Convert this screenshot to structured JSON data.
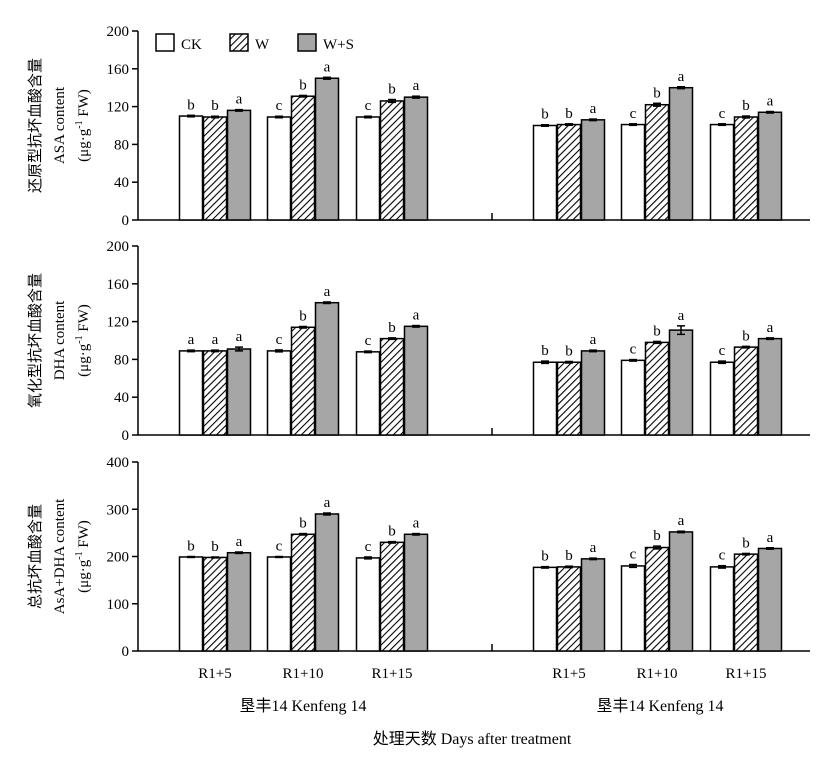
{
  "legend": {
    "entries": [
      {
        "label": "CK",
        "pattern": "ck"
      },
      {
        "label": "W",
        "pattern": "w"
      },
      {
        "label": "W+S",
        "pattern": "ws"
      }
    ]
  },
  "colors": {
    "ck_fill": "#ffffff",
    "ws_fill": "#a6a6a6",
    "stroke": "#000000"
  },
  "x_axis": {
    "categories": [
      "R1+5",
      "R1+10",
      "R1+15",
      "R1+5",
      "R1+10",
      "R1+15"
    ],
    "group_labels": [
      "垦丰14 Kenfeng 14",
      "垦丰14 Kenfeng 14"
    ],
    "title": "处理天数 Days after treatment"
  },
  "chart_data": [
    {
      "type": "bar",
      "ylabel_cn": "还原型抗坏血酸含量",
      "ylabel_en": "ASA content",
      "ylabel_unit_pre": "(μg·g",
      "ylabel_unit_sup": "-1",
      "ylabel_unit_post": " FW)",
      "ylim": [
        0,
        200
      ],
      "yticks": [
        0,
        40,
        80,
        120,
        160,
        200
      ],
      "series": [
        {
          "name": "CK",
          "values": [
            110,
            109,
            109,
            100,
            101,
            101
          ],
          "errors": [
            0.8,
            0.8,
            0.8,
            0.8,
            0.8,
            0.8
          ]
        },
        {
          "name": "W",
          "values": [
            109,
            131,
            126,
            101,
            122,
            109
          ],
          "errors": [
            0.8,
            0.8,
            1.5,
            0.8,
            1.5,
            1.0
          ]
        },
        {
          "name": "W+S",
          "values": [
            116,
            150,
            130,
            106,
            140,
            114
          ],
          "errors": [
            0.8,
            1.0,
            1.0,
            0.8,
            1.0,
            0.8
          ]
        }
      ],
      "labels": [
        [
          "b",
          "b",
          "a"
        ],
        [
          "c",
          "b",
          "a"
        ],
        [
          "c",
          "b",
          "a"
        ],
        [
          "b",
          "b",
          "a"
        ],
        [
          "c",
          "b",
          "a"
        ],
        [
          "c",
          "b",
          "a"
        ]
      ]
    },
    {
      "type": "bar",
      "ylabel_cn": "氧化型抗坏血酸含量",
      "ylabel_en": "DHA content",
      "ylabel_unit_pre": "(μg·g",
      "ylabel_unit_sup": "-1",
      "ylabel_unit_post": " FW)",
      "ylim": [
        0,
        200
      ],
      "yticks": [
        0,
        40,
        80,
        120,
        160,
        200
      ],
      "series": [
        {
          "name": "CK",
          "values": [
            89,
            89,
            88,
            77,
            79,
            77
          ],
          "errors": [
            0.8,
            1.0,
            0.8,
            1.2,
            0.8,
            1.2
          ]
        },
        {
          "name": "W",
          "values": [
            89,
            114,
            102,
            77,
            98,
            93
          ],
          "errors": [
            0.8,
            0.8,
            0.8,
            0.8,
            1.0,
            0.8
          ]
        },
        {
          "name": "W+S",
          "values": [
            91,
            140,
            115,
            89,
            111,
            102
          ],
          "errors": [
            2.0,
            0.8,
            0.8,
            0.8,
            4.5,
            0.8
          ]
        }
      ],
      "labels": [
        [
          "a",
          "a",
          "a"
        ],
        [
          "c",
          "b",
          "a"
        ],
        [
          "c",
          "b",
          "a"
        ],
        [
          "b",
          "b",
          "a"
        ],
        [
          "c",
          "b",
          "a"
        ],
        [
          "c",
          "b",
          "a"
        ]
      ]
    },
    {
      "type": "bar",
      "ylabel_cn": "总抗坏血酸含量",
      "ylabel_en": "AsA+DHA content",
      "ylabel_unit_pre": "(μg·g",
      "ylabel_unit_sup": "-1",
      "ylabel_unit_post": " FW)",
      "ylim": [
        0,
        400
      ],
      "yticks": [
        0,
        100,
        200,
        300,
        400
      ],
      "series": [
        {
          "name": "CK",
          "values": [
            199,
            199,
            197,
            177,
            180,
            178
          ],
          "errors": [
            1.0,
            1.0,
            2.0,
            1.5,
            3.0,
            2.5
          ]
        },
        {
          "name": "W",
          "values": [
            198,
            247,
            230,
            178,
            219,
            205
          ],
          "errors": [
            1.0,
            1.5,
            1.5,
            1.5,
            3.0,
            1.5
          ]
        },
        {
          "name": "W+S",
          "values": [
            208,
            290,
            247,
            195,
            252,
            217
          ],
          "errors": [
            1.5,
            2.0,
            1.5,
            1.5,
            1.5,
            1.5
          ]
        }
      ],
      "labels": [
        [
          "b",
          "b",
          "a"
        ],
        [
          "c",
          "b",
          "a"
        ],
        [
          "c",
          "b",
          "a"
        ],
        [
          "b",
          "b",
          "a"
        ],
        [
          "c",
          "b",
          "a"
        ],
        [
          "c",
          "b",
          "a"
        ]
      ]
    }
  ]
}
